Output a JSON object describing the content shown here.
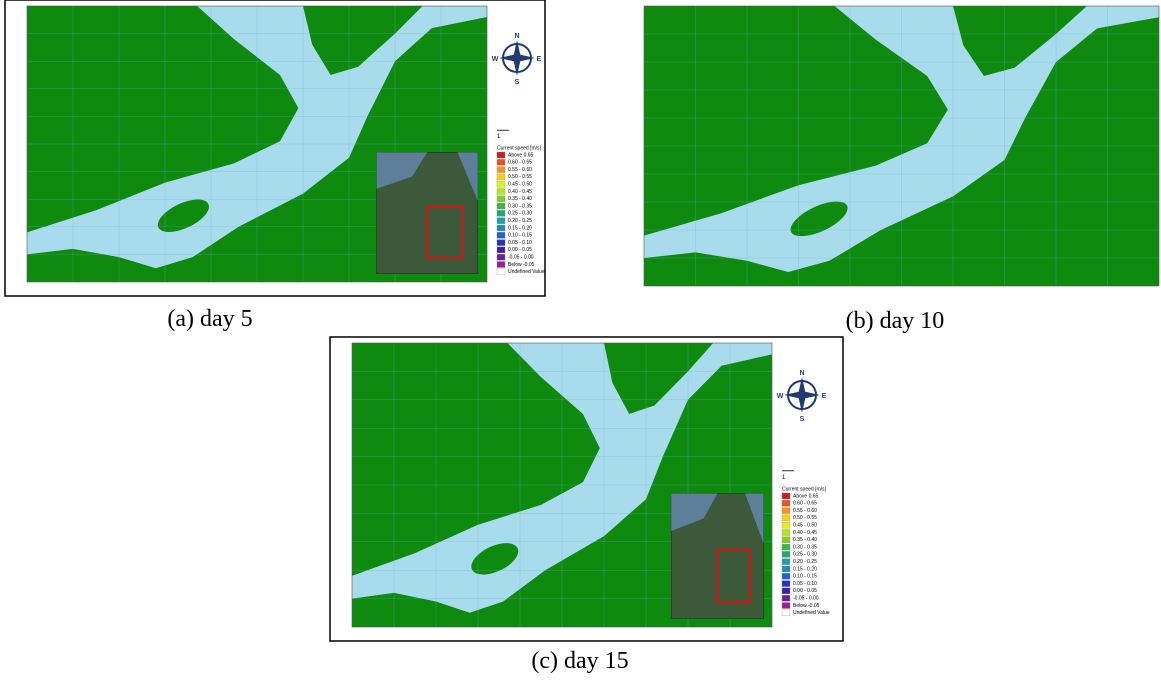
{
  "panels": [
    {
      "caption": "(a) day 5"
    },
    {
      "caption": "(b) day 10"
    },
    {
      "caption": "(c) day 15"
    }
  ],
  "compass": {
    "n": "N",
    "s": "S",
    "w": "W",
    "e": "E"
  },
  "scale_label": "1",
  "legend": {
    "title": "Current speed [m/s]",
    "items": [
      {
        "label": "Above 0.65",
        "color": "#d7191c"
      },
      {
        "label": "0.60 - 0.65",
        "color": "#f04e23"
      },
      {
        "label": "0.55 - 0.60",
        "color": "#f7941d"
      },
      {
        "label": "0.50 - 0.55",
        "color": "#fdd017"
      },
      {
        "label": "0.45 - 0.50",
        "color": "#e6f01a"
      },
      {
        "label": "0.40 - 0.45",
        "color": "#b5e61d"
      },
      {
        "label": "0.35 - 0.40",
        "color": "#7ed321"
      },
      {
        "label": "0.30 - 0.35",
        "color": "#3cb93c"
      },
      {
        "label": "0.25 - 0.30",
        "color": "#1fa67a"
      },
      {
        "label": "0.20 - 0.25",
        "color": "#1ba1a8"
      },
      {
        "label": "0.15 - 0.20",
        "color": "#1e88c8"
      },
      {
        "label": "0.10 - 0.15",
        "color": "#1f5fd0"
      },
      {
        "label": "0.05 - 0.10",
        "color": "#2233c8"
      },
      {
        "label": "0.00 - 0.05",
        "color": "#3a1fb0"
      },
      {
        "label": "-0.05 - 0.00",
        "color": "#6a1fa0"
      },
      {
        "label": "Below -0.05",
        "color": "#9b1f8e"
      },
      {
        "label": "Undefined Value",
        "color": "#ffffff"
      }
    ]
  }
}
